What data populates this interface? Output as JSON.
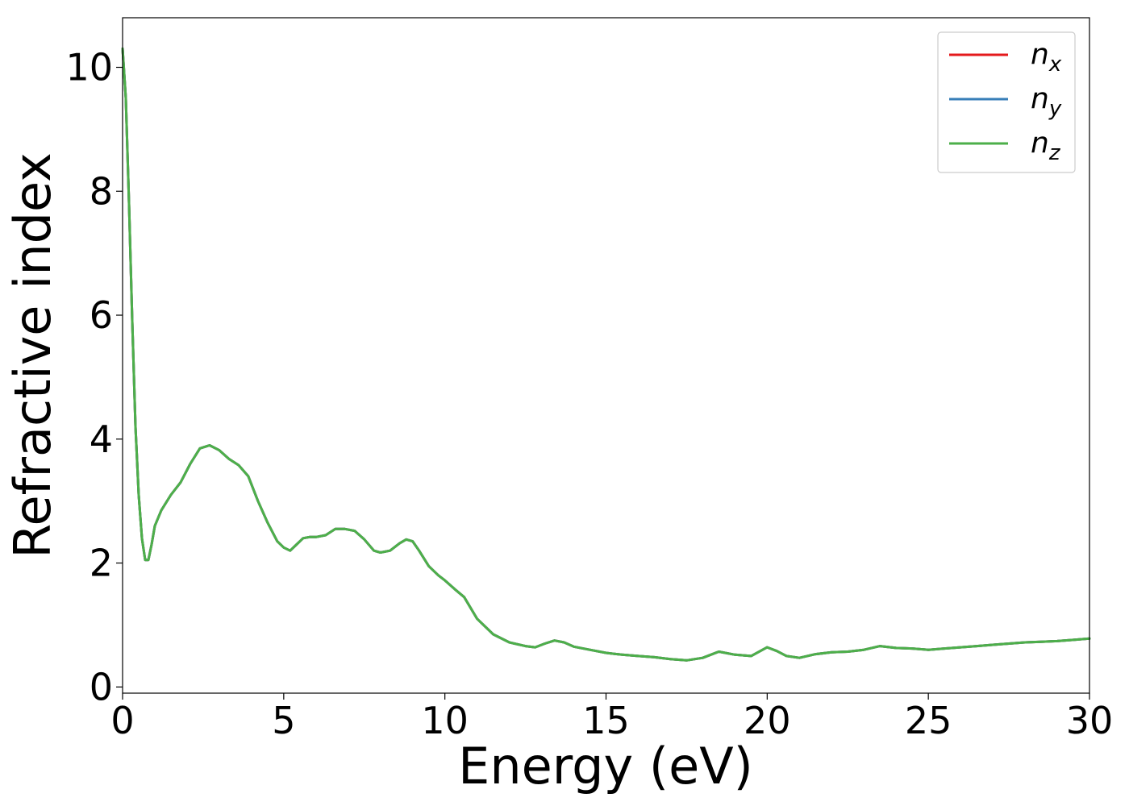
{
  "chart_data": {
    "type": "line",
    "xlabel": "Energy (eV)",
    "ylabel": "Refractive index",
    "xlim": [
      0,
      30
    ],
    "ylim": [
      -0.1,
      10.8
    ],
    "x_ticks": [
      0,
      5,
      10,
      15,
      20,
      25,
      30
    ],
    "y_ticks": [
      0,
      2,
      4,
      6,
      8,
      10
    ],
    "grid": false,
    "legend_position": "top-right",
    "series": [
      {
        "name": "n_x",
        "legend_base": "n",
        "legend_sub": "x",
        "color": "#e41a1c",
        "x": [
          0,
          0.1,
          0.2,
          0.3,
          0.4,
          0.5,
          0.6,
          0.7,
          0.8,
          0.9,
          1.0,
          1.2,
          1.5,
          1.8,
          2.1,
          2.4,
          2.7,
          3.0,
          3.3,
          3.6,
          3.9,
          4.2,
          4.5,
          4.8,
          5.0,
          5.2,
          5.4,
          5.6,
          5.8,
          6.0,
          6.3,
          6.6,
          6.9,
          7.2,
          7.5,
          7.8,
          8.0,
          8.3,
          8.6,
          8.8,
          9.0,
          9.2,
          9.5,
          9.8,
          10.0,
          10.3,
          10.6,
          11.0,
          11.5,
          12.0,
          12.5,
          12.8,
          13.1,
          13.4,
          13.7,
          14.0,
          14.5,
          15.0,
          15.5,
          16.0,
          16.5,
          17.0,
          17.5,
          18.0,
          18.5,
          19.0,
          19.5,
          20.0,
          20.3,
          20.6,
          21.0,
          21.5,
          22.0,
          22.5,
          23.0,
          23.5,
          24.0,
          24.5,
          25.0,
          25.5,
          26.0,
          26.5,
          27.0,
          27.5,
          28.0,
          28.5,
          29.0,
          29.5,
          30.0
        ],
        "y": [
          10.3,
          9.5,
          7.8,
          5.9,
          4.2,
          3.1,
          2.4,
          2.05,
          2.05,
          2.3,
          2.6,
          2.85,
          3.1,
          3.3,
          3.6,
          3.85,
          3.9,
          3.82,
          3.68,
          3.58,
          3.4,
          3.0,
          2.65,
          2.35,
          2.25,
          2.2,
          2.3,
          2.4,
          2.42,
          2.42,
          2.45,
          2.55,
          2.55,
          2.52,
          2.38,
          2.2,
          2.17,
          2.2,
          2.32,
          2.38,
          2.35,
          2.2,
          1.95,
          1.8,
          1.72,
          1.58,
          1.45,
          1.1,
          0.85,
          0.72,
          0.66,
          0.64,
          0.7,
          0.75,
          0.72,
          0.65,
          0.6,
          0.55,
          0.52,
          0.5,
          0.48,
          0.45,
          0.43,
          0.47,
          0.57,
          0.52,
          0.5,
          0.64,
          0.58,
          0.5,
          0.47,
          0.53,
          0.56,
          0.57,
          0.6,
          0.66,
          0.63,
          0.62,
          0.6,
          0.62,
          0.64,
          0.66,
          0.68,
          0.7,
          0.72,
          0.73,
          0.74,
          0.76,
          0.78
        ]
      },
      {
        "name": "n_y",
        "legend_base": "n",
        "legend_sub": "y",
        "color": "#377eb8",
        "x": [
          0,
          0.1,
          0.2,
          0.3,
          0.4,
          0.5,
          0.6,
          0.7,
          0.8,
          0.9,
          1.0,
          1.2,
          1.5,
          1.8,
          2.1,
          2.4,
          2.7,
          3.0,
          3.3,
          3.6,
          3.9,
          4.2,
          4.5,
          4.8,
          5.0,
          5.2,
          5.4,
          5.6,
          5.8,
          6.0,
          6.3,
          6.6,
          6.9,
          7.2,
          7.5,
          7.8,
          8.0,
          8.3,
          8.6,
          8.8,
          9.0,
          9.2,
          9.5,
          9.8,
          10.0,
          10.3,
          10.6,
          11.0,
          11.5,
          12.0,
          12.5,
          12.8,
          13.1,
          13.4,
          13.7,
          14.0,
          14.5,
          15.0,
          15.5,
          16.0,
          16.5,
          17.0,
          17.5,
          18.0,
          18.5,
          19.0,
          19.5,
          20.0,
          20.3,
          20.6,
          21.0,
          21.5,
          22.0,
          22.5,
          23.0,
          23.5,
          24.0,
          24.5,
          25.0,
          25.5,
          26.0,
          26.5,
          27.0,
          27.5,
          28.0,
          28.5,
          29.0,
          29.5,
          30.0
        ],
        "y": [
          10.3,
          9.5,
          7.8,
          5.9,
          4.2,
          3.1,
          2.4,
          2.05,
          2.05,
          2.3,
          2.6,
          2.85,
          3.1,
          3.3,
          3.6,
          3.85,
          3.9,
          3.82,
          3.68,
          3.58,
          3.4,
          3.0,
          2.65,
          2.35,
          2.25,
          2.2,
          2.3,
          2.4,
          2.42,
          2.42,
          2.45,
          2.55,
          2.55,
          2.52,
          2.38,
          2.2,
          2.17,
          2.2,
          2.32,
          2.38,
          2.35,
          2.2,
          1.95,
          1.8,
          1.72,
          1.58,
          1.45,
          1.1,
          0.85,
          0.72,
          0.66,
          0.64,
          0.7,
          0.75,
          0.72,
          0.65,
          0.6,
          0.55,
          0.52,
          0.5,
          0.48,
          0.45,
          0.43,
          0.47,
          0.57,
          0.52,
          0.5,
          0.64,
          0.58,
          0.5,
          0.47,
          0.53,
          0.56,
          0.57,
          0.6,
          0.66,
          0.63,
          0.62,
          0.6,
          0.62,
          0.64,
          0.66,
          0.68,
          0.7,
          0.72,
          0.73,
          0.74,
          0.76,
          0.78
        ]
      },
      {
        "name": "n_z",
        "legend_base": "n",
        "legend_sub": "z",
        "color": "#4daf4a",
        "x": [
          0,
          0.1,
          0.2,
          0.3,
          0.4,
          0.5,
          0.6,
          0.7,
          0.8,
          0.9,
          1.0,
          1.2,
          1.5,
          1.8,
          2.1,
          2.4,
          2.7,
          3.0,
          3.3,
          3.6,
          3.9,
          4.2,
          4.5,
          4.8,
          5.0,
          5.2,
          5.4,
          5.6,
          5.8,
          6.0,
          6.3,
          6.6,
          6.9,
          7.2,
          7.5,
          7.8,
          8.0,
          8.3,
          8.6,
          8.8,
          9.0,
          9.2,
          9.5,
          9.8,
          10.0,
          10.3,
          10.6,
          11.0,
          11.5,
          12.0,
          12.5,
          12.8,
          13.1,
          13.4,
          13.7,
          14.0,
          14.5,
          15.0,
          15.5,
          16.0,
          16.5,
          17.0,
          17.5,
          18.0,
          18.5,
          19.0,
          19.5,
          20.0,
          20.3,
          20.6,
          21.0,
          21.5,
          22.0,
          22.5,
          23.0,
          23.5,
          24.0,
          24.5,
          25.0,
          25.5,
          26.0,
          26.5,
          27.0,
          27.5,
          28.0,
          28.5,
          29.0,
          29.5,
          30.0
        ],
        "y": [
          10.3,
          9.5,
          7.8,
          5.9,
          4.2,
          3.1,
          2.4,
          2.05,
          2.05,
          2.3,
          2.6,
          2.85,
          3.1,
          3.3,
          3.6,
          3.85,
          3.9,
          3.82,
          3.68,
          3.58,
          3.4,
          3.0,
          2.65,
          2.35,
          2.25,
          2.2,
          2.3,
          2.4,
          2.42,
          2.42,
          2.45,
          2.55,
          2.55,
          2.52,
          2.38,
          2.2,
          2.17,
          2.2,
          2.32,
          2.38,
          2.35,
          2.2,
          1.95,
          1.8,
          1.72,
          1.58,
          1.45,
          1.1,
          0.85,
          0.72,
          0.66,
          0.64,
          0.7,
          0.75,
          0.72,
          0.65,
          0.6,
          0.55,
          0.52,
          0.5,
          0.48,
          0.45,
          0.43,
          0.47,
          0.57,
          0.52,
          0.5,
          0.64,
          0.58,
          0.5,
          0.47,
          0.53,
          0.56,
          0.57,
          0.6,
          0.66,
          0.63,
          0.62,
          0.6,
          0.62,
          0.64,
          0.66,
          0.68,
          0.7,
          0.72,
          0.73,
          0.74,
          0.76,
          0.78
        ]
      }
    ]
  }
}
